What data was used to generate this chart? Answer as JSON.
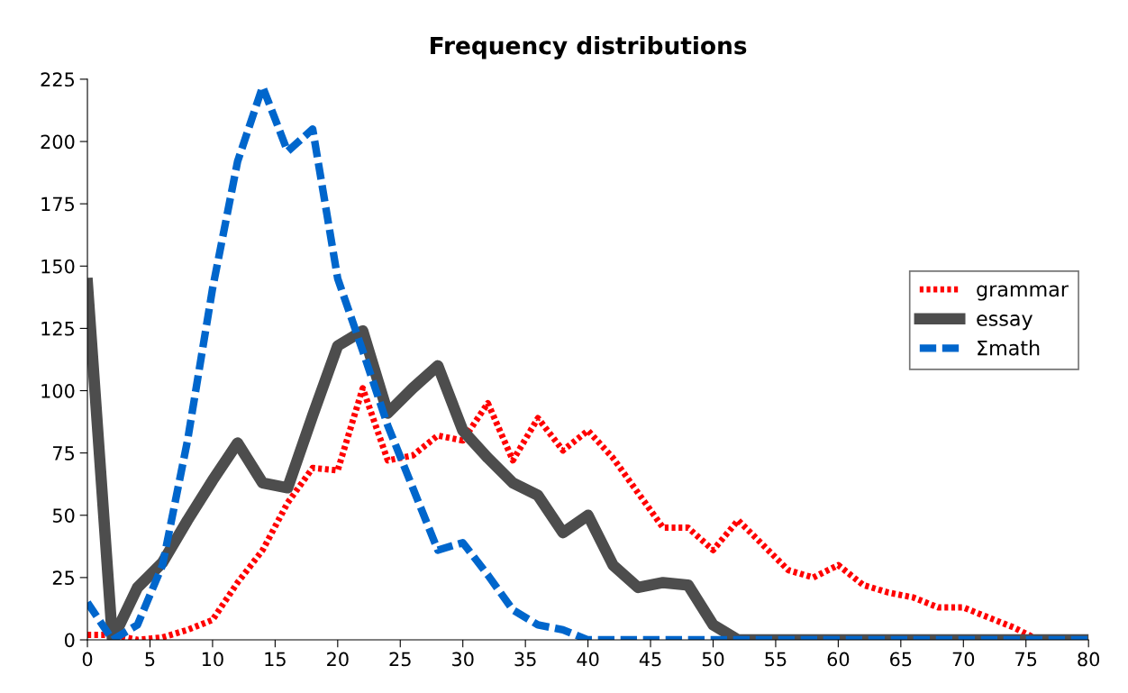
{
  "chart_data": {
    "type": "line",
    "title": "Frequency distributions",
    "x": [
      0,
      2,
      4,
      6,
      8,
      10,
      12,
      14,
      16,
      18,
      20,
      22,
      24,
      26,
      28,
      30,
      32,
      34,
      36,
      38,
      40,
      42,
      44,
      46,
      48,
      50,
      52,
      54,
      56,
      58,
      60,
      62,
      64,
      66,
      68,
      70,
      72,
      74,
      76,
      78,
      80
    ],
    "series": [
      {
        "name": "grammar",
        "color": "#ff0000",
        "line_style": "dotted",
        "values": [
          2,
          2,
          0,
          1,
          4,
          8,
          23,
          36,
          55,
          69,
          68,
          101,
          72,
          74,
          82,
          80,
          95,
          72,
          89,
          76,
          84,
          73,
          59,
          45,
          45,
          36,
          48,
          38,
          28,
          25,
          30,
          22,
          19,
          17,
          13,
          13,
          9,
          5,
          0,
          0,
          0
        ]
      },
      {
        "name": "essay",
        "color": "#4d4d4d",
        "line_style": "solid",
        "values": [
          143,
          0,
          21,
          31,
          48,
          64,
          79,
          63,
          61,
          90,
          118,
          124,
          91,
          101,
          110,
          84,
          73,
          63,
          58,
          43,
          50,
          30,
          21,
          23,
          22,
          6,
          0,
          0,
          0,
          0,
          0,
          0,
          0,
          0,
          0,
          0,
          0,
          0,
          0,
          0,
          0
        ]
      },
      {
        "name": "Σmath",
        "color": "#0066cc",
        "line_style": "dashed",
        "values": [
          15,
          0,
          6,
          30,
          80,
          141,
          192,
          222,
          196,
          205,
          145,
          116,
          86,
          61,
          36,
          39,
          26,
          12,
          6,
          4,
          0,
          0,
          0,
          0,
          0,
          0,
          0,
          0,
          0,
          0,
          0,
          0,
          0,
          0,
          0,
          0,
          0,
          0,
          0,
          0,
          0
        ]
      }
    ],
    "xlim": [
      0,
      80
    ],
    "xticks": [
      0,
      5,
      10,
      15,
      20,
      25,
      30,
      35,
      40,
      45,
      50,
      55,
      60,
      65,
      70,
      75,
      80
    ],
    "ylim": [
      0,
      225
    ],
    "yticks": [
      0,
      25,
      50,
      75,
      100,
      125,
      150,
      175,
      200,
      225
    ],
    "grid": false,
    "legend": "right",
    "marker": "none"
  }
}
